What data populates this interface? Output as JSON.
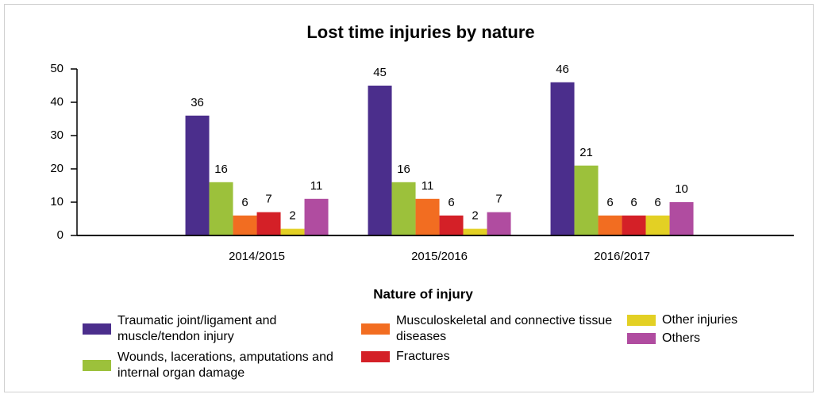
{
  "chart_data": {
    "type": "bar",
    "title": "Lost time injuries by nature",
    "legend_title": "Nature of injury",
    "categories": [
      "2014/2015",
      "2015/2016",
      "2016/2017"
    ],
    "ylim": [
      0,
      50
    ],
    "yticks": [
      0,
      10,
      20,
      30,
      40,
      50
    ],
    "grid": false,
    "legend": "bottom",
    "series": [
      {
        "name": "Traumatic joint/ligament and muscle/tendon injury",
        "color": "#4b2e8c",
        "values": [
          36,
          45,
          46
        ]
      },
      {
        "name": "Wounds, lacerations, amputations and internal organ damage",
        "color": "#9cc13b",
        "values": [
          16,
          16,
          21
        ]
      },
      {
        "name": "Musculoskeletal and connective tissue diseases",
        "color": "#f26d21",
        "values": [
          6,
          11,
          6
        ]
      },
      {
        "name": "Fractures",
        "color": "#d42027",
        "values": [
          7,
          6,
          6
        ]
      },
      {
        "name": "Other injuries",
        "color": "#e3d024",
        "values": [
          2,
          2,
          6
        ]
      },
      {
        "name": "Others",
        "color": "#b04ca0",
        "values": [
          11,
          7,
          10
        ]
      }
    ]
  }
}
